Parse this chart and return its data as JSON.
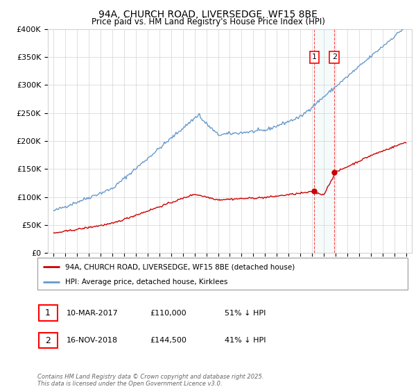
{
  "title": "94A, CHURCH ROAD, LIVERSEDGE, WF15 8BE",
  "subtitle": "Price paid vs. HM Land Registry's House Price Index (HPI)",
  "legend_line1": "94A, CHURCH ROAD, LIVERSEDGE, WF15 8BE (detached house)",
  "legend_line2": "HPI: Average price, detached house, Kirklees",
  "sale1_date": "10-MAR-2017",
  "sale1_price": "£110,000",
  "sale1_hpi": "51% ↓ HPI",
  "sale2_date": "16-NOV-2018",
  "sale2_price": "£144,500",
  "sale2_hpi": "41% ↓ HPI",
  "copyright": "Contains HM Land Registry data © Crown copyright and database right 2025.\nThis data is licensed under the Open Government Licence v3.0.",
  "red_color": "#cc0000",
  "blue_color": "#6699cc",
  "sale1_year": 2017.2,
  "sale2_year": 2018.9,
  "sale1_price_val": 110000,
  "sale2_price_val": 144500,
  "ylim": [
    0,
    400000
  ],
  "xlim_start": 1994.5,
  "xlim_end": 2025.5
}
